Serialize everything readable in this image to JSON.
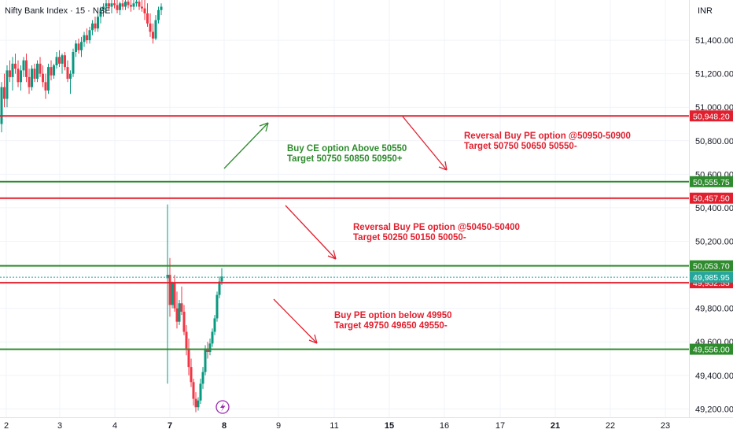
{
  "header": {
    "symbol_title": "Nifty Bank Index · 15 · NSE",
    "currency": "INR"
  },
  "colors": {
    "up": "#089981",
    "down": "#f23645",
    "green_line": "#2e8b2e",
    "red_line": "#e0202f",
    "price_badge": "#26a69a",
    "flash": "#9c27b0"
  },
  "chart_data": {
    "type": "candlestick",
    "title": "Nifty Bank Index · 15 · NSE",
    "ylabel": "INR",
    "ylim": [
      49150,
      51640
    ],
    "y_ticks": [
      {
        "value": 51400,
        "label": "51,400.00"
      },
      {
        "value": 51200,
        "label": "51,200.00"
      },
      {
        "value": 51000,
        "label": "51,000.00"
      },
      {
        "value": 50800,
        "label": "50,800.00"
      },
      {
        "value": 50600,
        "label": "50,600.00"
      },
      {
        "value": 50400,
        "label": "50,400.00"
      },
      {
        "value": 50200,
        "label": "50,200.00"
      },
      {
        "value": 49800,
        "label": "49,800.00"
      },
      {
        "value": 49600,
        "label": "49,600.00"
      },
      {
        "value": 49400,
        "label": "49,400.00"
      },
      {
        "value": 49200,
        "label": "49,200.00"
      }
    ],
    "x_ticks": [
      {
        "label": "2",
        "bold": false
      },
      {
        "label": "3",
        "bold": false
      },
      {
        "label": "4",
        "bold": false
      },
      {
        "label": "7",
        "bold": true
      },
      {
        "label": "8",
        "bold": true
      },
      {
        "label": "9",
        "bold": false
      },
      {
        "label": "11",
        "bold": false
      },
      {
        "label": "15",
        "bold": true
      },
      {
        "label": "16",
        "bold": false
      },
      {
        "label": "17",
        "bold": false
      },
      {
        "label": "21",
        "bold": true
      },
      {
        "label": "22",
        "bold": false
      },
      {
        "label": "23",
        "bold": false
      }
    ],
    "levels": [
      {
        "value": 50948.2,
        "label": "50,948.20",
        "kind": "red"
      },
      {
        "value": 50555.75,
        "label": "50,555.75",
        "kind": "green"
      },
      {
        "value": 50457.5,
        "label": "50,457.50",
        "kind": "red"
      },
      {
        "value": 50053.7,
        "label": "50,053.70",
        "kind": "green"
      },
      {
        "value": 49952.55,
        "label": "49,952.55",
        "kind": "red"
      },
      {
        "value": 49556.0,
        "label": "49,556.00",
        "kind": "green"
      }
    ],
    "last_price": {
      "value": 49985.95,
      "label": "49,985.95"
    },
    "annotations": [
      {
        "line1": "Buy CE option Above 50550",
        "line2": "Target 50750 50850 50950+",
        "kind": "green"
      },
      {
        "line1": "Reversal Buy PE option @50950-50900",
        "line2": "Target 50750 50650 50550-",
        "kind": "red"
      },
      {
        "line1": "Reversal Buy PE option @50450-50400",
        "line2": "Target 50250 50150 50050-",
        "kind": "red"
      },
      {
        "line1": "Buy PE option below 49950",
        "line2": "Target 49750 49650 49550-",
        "kind": "red"
      }
    ],
    "candles_session1": [
      [
        50900,
        51150,
        50850,
        51120
      ],
      [
        51120,
        51200,
        51000,
        51050
      ],
      [
        51050,
        51250,
        51000,
        51220
      ],
      [
        51220,
        51280,
        51150,
        51180
      ],
      [
        51180,
        51300,
        51100,
        51260
      ],
      [
        51260,
        51320,
        51200,
        51230
      ],
      [
        51230,
        51280,
        51120,
        51150
      ],
      [
        51150,
        51250,
        51100,
        51220
      ],
      [
        51220,
        51300,
        51180,
        51280
      ],
      [
        51280,
        51320,
        51150,
        51180
      ],
      [
        51180,
        51230,
        51080,
        51120
      ],
      [
        51120,
        51250,
        51100,
        51230
      ],
      [
        51230,
        51260,
        51150,
        51170
      ],
      [
        51170,
        51280,
        51150,
        51260
      ],
      [
        51260,
        51300,
        51180,
        51200
      ],
      [
        51200,
        51250,
        51120,
        51150
      ],
      [
        51150,
        51200,
        51050,
        51100
      ],
      [
        51100,
        51260,
        51080,
        51240
      ],
      [
        51240,
        51280,
        51160,
        51190
      ],
      [
        51190,
        51260,
        51170,
        51250
      ],
      [
        51250,
        51330,
        51230,
        51300
      ],
      [
        51300,
        51340,
        51240,
        51260
      ],
      [
        51260,
        51320,
        51200,
        51310
      ],
      [
        51310,
        51330,
        51220,
        51240
      ],
      [
        51240,
        51280,
        51150,
        51170
      ],
      [
        51170,
        51220,
        51080,
        51200
      ],
      [
        51200,
        51350,
        51180,
        51330
      ],
      [
        51330,
        51400,
        51300,
        51380
      ],
      [
        51380,
        51410,
        51320,
        51340
      ],
      [
        51340,
        51420,
        51300,
        51390
      ],
      [
        51390,
        51450,
        51360,
        51430
      ],
      [
        51430,
        51470,
        51380,
        51400
      ],
      [
        51400,
        51480,
        51380,
        51460
      ],
      [
        51460,
        51520,
        51430,
        51500
      ],
      [
        51500,
        51540,
        51450,
        51470
      ],
      [
        51470,
        51560,
        51450,
        51540
      ],
      [
        51540,
        51600,
        51500,
        51580
      ],
      [
        51580,
        51620,
        51540,
        51600
      ],
      [
        51600,
        51640,
        51560,
        51620
      ],
      [
        51620,
        51640,
        51580,
        51600
      ],
      [
        51600,
        51640,
        51560,
        51620
      ],
      [
        51620,
        51640,
        51590,
        51610
      ],
      [
        51610,
        51640,
        51560,
        51580
      ],
      [
        51580,
        51630,
        51550,
        51620
      ],
      [
        51620,
        51640,
        51580,
        51600
      ],
      [
        51600,
        51640,
        51580,
        51630
      ],
      [
        51630,
        51640,
        51590,
        51610
      ],
      [
        51610,
        51640,
        51570,
        51600
      ],
      [
        51600,
        51640,
        51580,
        51620
      ],
      [
        51620,
        51640,
        51600,
        51630
      ],
      [
        51630,
        51640,
        51580,
        51600
      ],
      [
        51600,
        51640,
        51570,
        51590
      ],
      [
        51590,
        51640,
        51520,
        51560
      ],
      [
        51560,
        51620,
        51480,
        51500
      ],
      [
        51500,
        51560,
        51420,
        51450
      ],
      [
        51450,
        51500,
        51380,
        51410
      ],
      [
        51410,
        51550,
        51400,
        51520
      ],
      [
        51520,
        51600,
        51500,
        51580
      ],
      [
        51580,
        51620,
        51550,
        51600
      ]
    ],
    "candles_session2": [
      [
        49980,
        50420,
        49350,
        50000
      ],
      [
        50000,
        50100,
        49750,
        49820
      ],
      [
        49820,
        49960,
        49800,
        49950
      ],
      [
        49950,
        50000,
        49780,
        49800
      ],
      [
        49800,
        49900,
        49680,
        49720
      ],
      [
        49720,
        49850,
        49700,
        49830
      ],
      [
        49830,
        49930,
        49760,
        49780
      ],
      [
        49780,
        49820,
        49640,
        49660
      ],
      [
        49660,
        49700,
        49520,
        49560
      ],
      [
        49560,
        49620,
        49400,
        49450
      ],
      [
        49450,
        49500,
        49330,
        49360
      ],
      [
        49360,
        49380,
        49220,
        49260
      ],
      [
        49260,
        49300,
        49180,
        49210
      ],
      [
        49210,
        49270,
        49190,
        49250
      ],
      [
        49250,
        49380,
        49230,
        49350
      ],
      [
        49350,
        49450,
        49320,
        49420
      ],
      [
        49420,
        49580,
        49400,
        49560
      ],
      [
        49560,
        49600,
        49500,
        49540
      ],
      [
        49540,
        49620,
        49520,
        49590
      ],
      [
        49590,
        49680,
        49570,
        49660
      ],
      [
        49660,
        49760,
        49640,
        49740
      ],
      [
        49740,
        49900,
        49720,
        49880
      ],
      [
        49880,
        49990,
        49860,
        49960
      ],
      [
        49960,
        50040,
        49940,
        49990
      ]
    ]
  }
}
